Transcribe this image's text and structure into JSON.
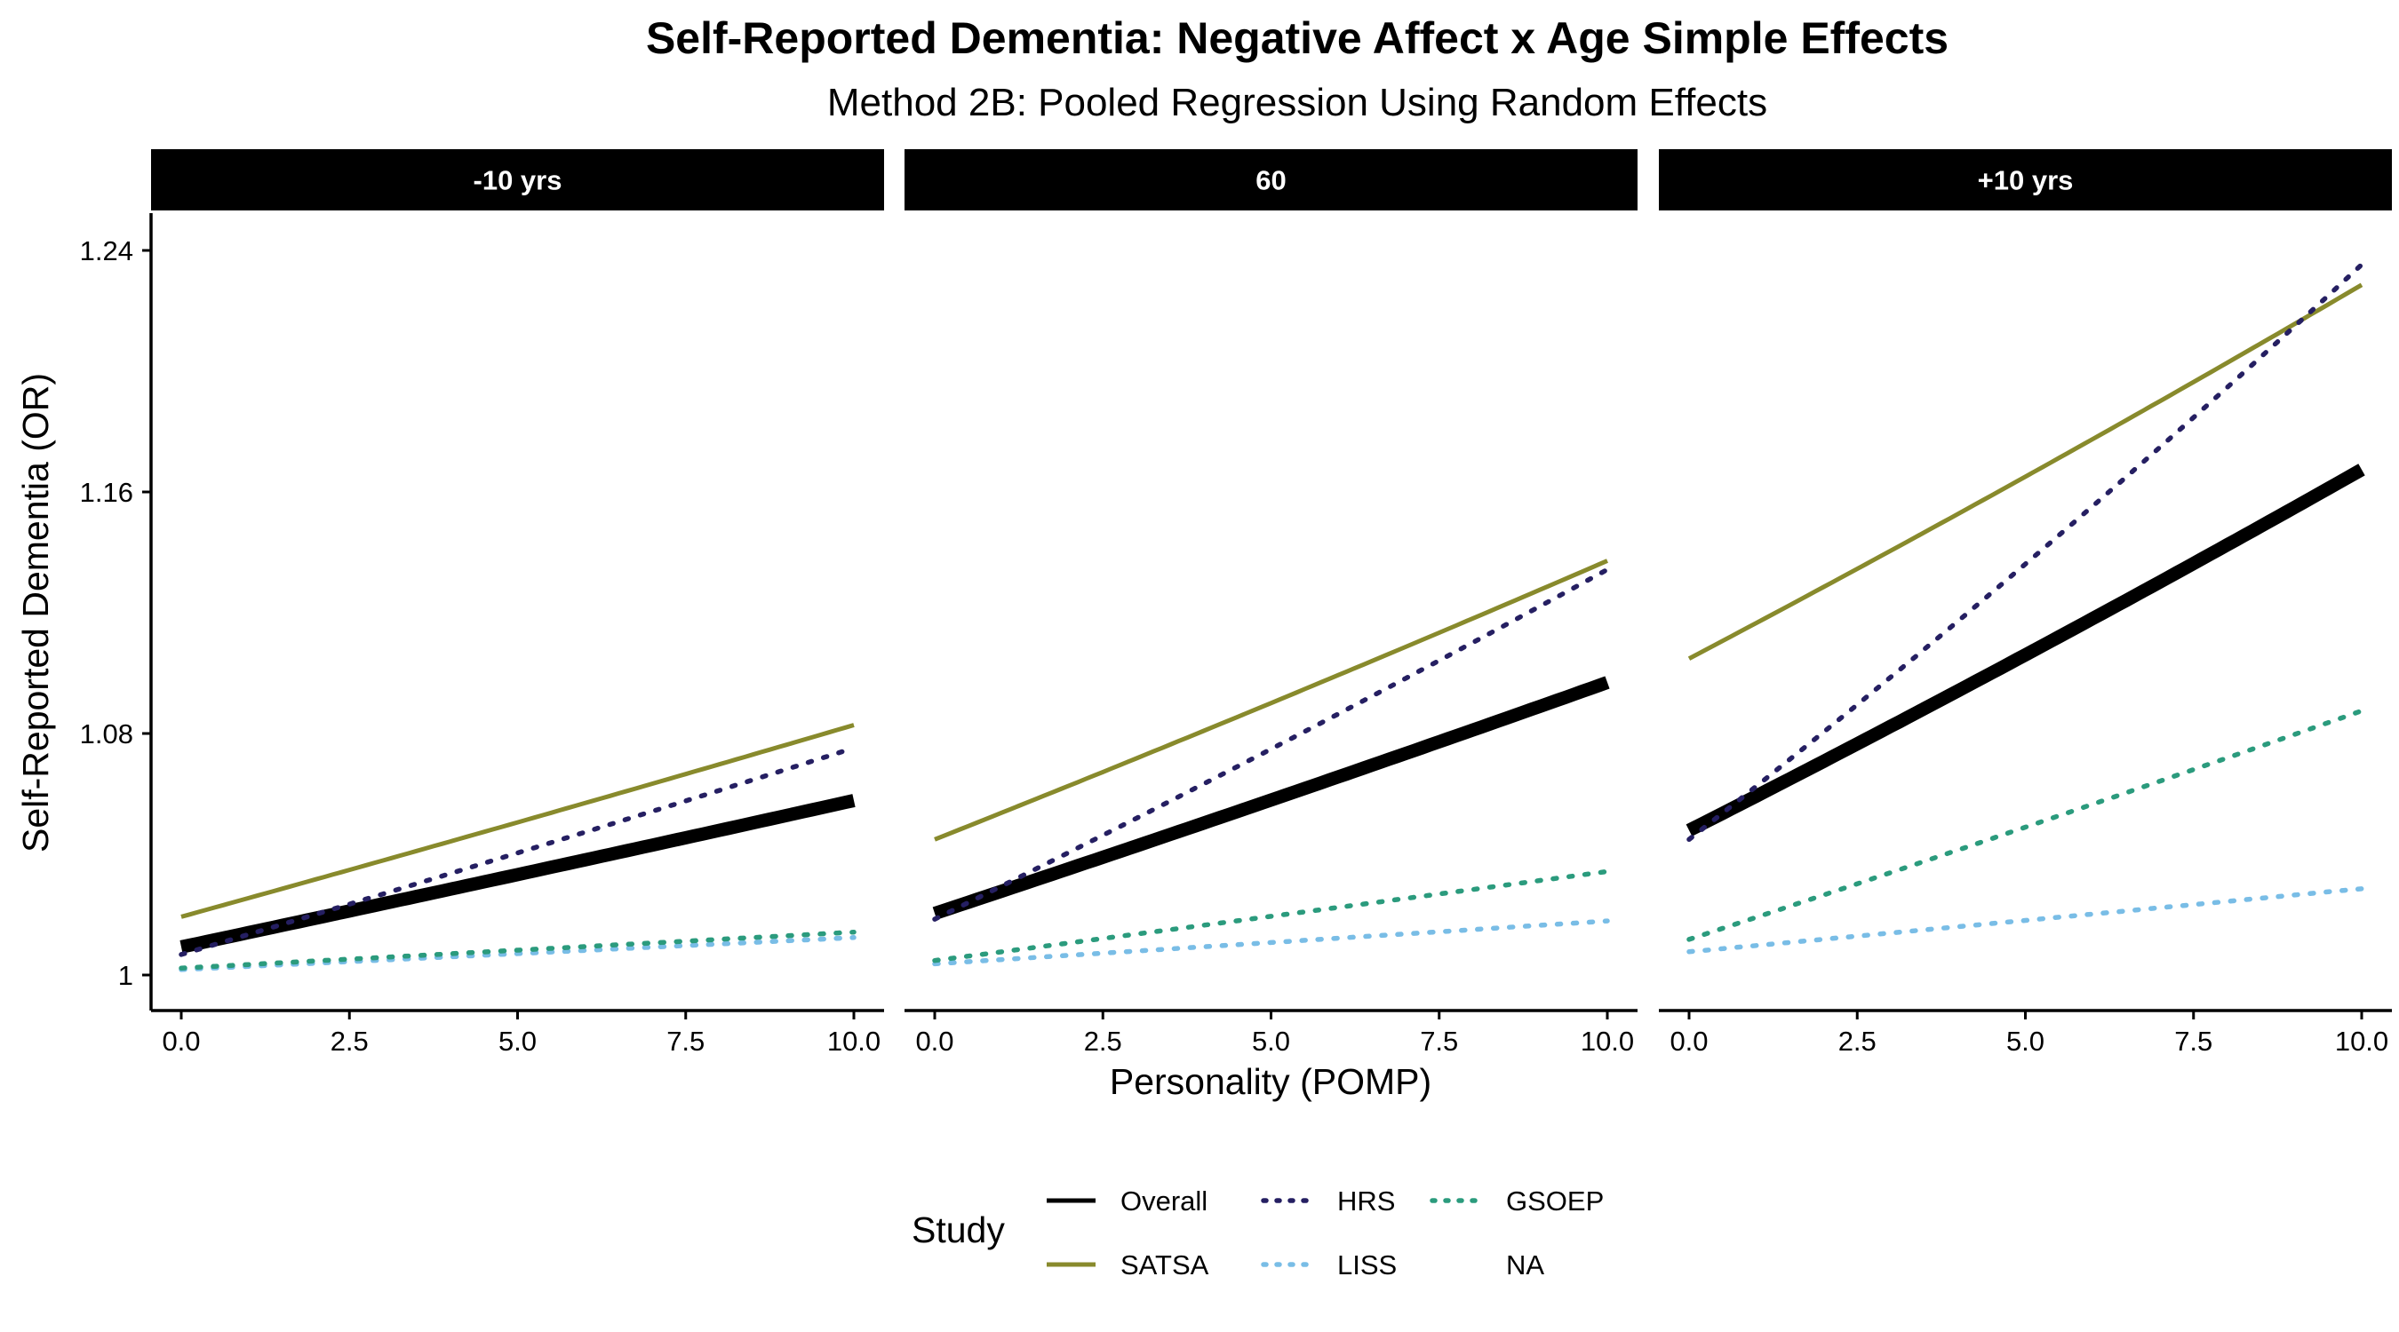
{
  "chart_data": {
    "type": "line",
    "title": "Self-Reported Dementia: Negative Affect x Age Simple Effects",
    "subtitle": "Method 2B: Pooled Regression Using Random Effects",
    "xlabel": "Personality (POMP)",
    "ylabel": "Self-Reported Dementia (OR)",
    "xlim": [
      0,
      10
    ],
    "ylim": [
      1,
      1.24
    ],
    "x_ticks": [
      "0.0",
      "2.5",
      "5.0",
      "7.5",
      "10.0"
    ],
    "x_tick_values": [
      0,
      2.5,
      5,
      7.5,
      10
    ],
    "y_ticks": [
      "1",
      "1.08",
      "1.16",
      "1.24"
    ],
    "y_tick_values": [
      1,
      1.08,
      1.16,
      1.24
    ],
    "grid": false,
    "legend": {
      "title": "Study",
      "position": "bottom",
      "entries": [
        "Overall",
        "SATSA",
        "HRS",
        "LISS",
        "GSOEP",
        "NA"
      ]
    },
    "panels": [
      {
        "label": "-10 yrs",
        "series": [
          {
            "name": "Overall",
            "color": "#000000",
            "style": "solid",
            "start": 1.0093,
            "end": 1.0578
          },
          {
            "name": "SATSA",
            "color": "#888a2c",
            "style": "solid",
            "start": 1.0193,
            "end": 1.0828
          },
          {
            "name": "HRS",
            "color": "#251f62",
            "style": "dotted",
            "start": 1.0068,
            "end": 1.0752
          },
          {
            "name": "LISS",
            "color": "#79bde6",
            "style": "dotted",
            "start": 1.0018,
            "end": 1.0124
          },
          {
            "name": "GSOEP",
            "color": "#2b9b7d",
            "style": "dotted",
            "start": 1.0023,
            "end": 1.0142
          }
        ]
      },
      {
        "label": "60",
        "series": [
          {
            "name": "Overall",
            "color": "#000000",
            "style": "solid",
            "start": 1.0204,
            "end": 1.0969
          },
          {
            "name": "SATSA",
            "color": "#888a2c",
            "style": "solid",
            "start": 1.0449,
            "end": 1.1372
          },
          {
            "name": "HRS",
            "color": "#251f62",
            "style": "dotted",
            "start": 1.0185,
            "end": 1.1343
          },
          {
            "name": "LISS",
            "color": "#79bde6",
            "style": "dotted",
            "start": 1.0037,
            "end": 1.0179
          },
          {
            "name": "GSOEP",
            "color": "#2b9b7d",
            "style": "dotted",
            "start": 1.0048,
            "end": 1.0343
          }
        ]
      },
      {
        "label": "+10 yrs",
        "series": [
          {
            "name": "Overall",
            "color": "#000000",
            "style": "solid",
            "start": 1.0479,
            "end": 1.1674
          },
          {
            "name": "SATSA",
            "color": "#888a2c",
            "style": "solid",
            "start": 1.1048,
            "end": 1.2286
          },
          {
            "name": "HRS",
            "color": "#251f62",
            "style": "dotted",
            "start": 1.0449,
            "end": 1.2353
          },
          {
            "name": "LISS",
            "color": "#79bde6",
            "style": "dotted",
            "start": 1.0077,
            "end": 1.0286
          },
          {
            "name": "GSOEP",
            "color": "#2b9b7d",
            "style": "dotted",
            "start": 1.0118,
            "end": 1.0875
          }
        ]
      }
    ]
  }
}
